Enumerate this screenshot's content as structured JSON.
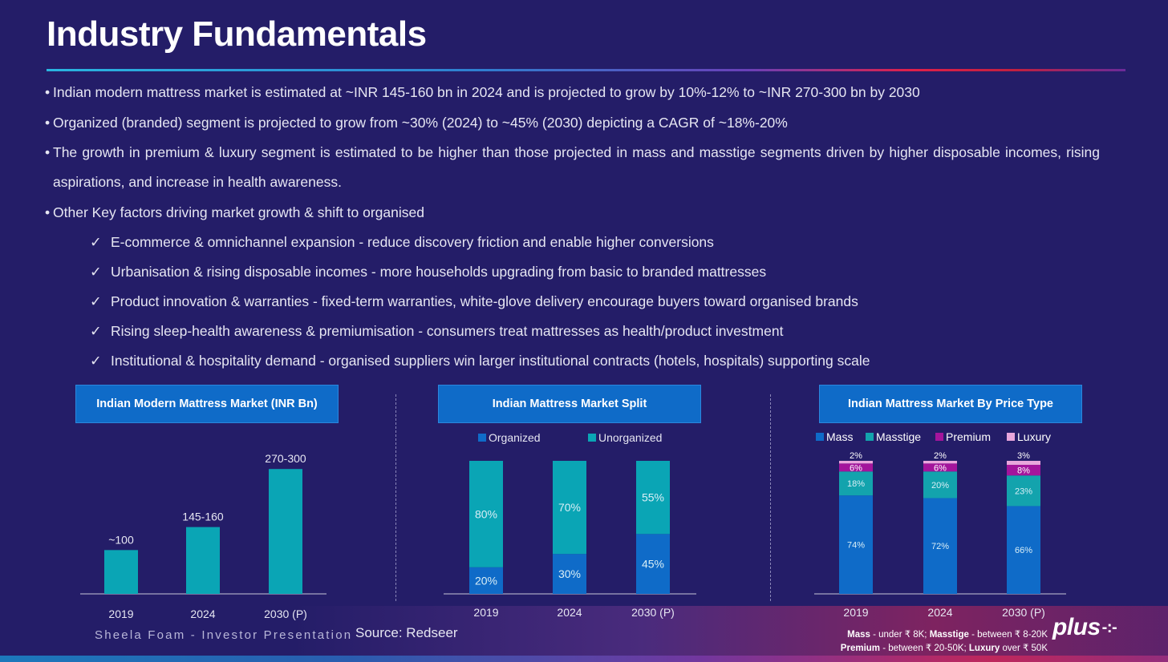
{
  "header": {
    "title": "Industry Fundamentals"
  },
  "bullets": [
    "Indian modern mattress market is estimated at ~INR 145-160 bn in 2024 and is projected to grow by 10%-12% to ~INR 270-300 bn by 2030",
    "Organized (branded) segment is projected to grow from ~30% (2024) to ~45% (2030) depicting a CAGR of ~18%-20%",
    "The growth in premium & luxury segment is estimated to be higher than those projected in mass and masstige segments driven by higher disposable incomes, rising aspirations, and increase in health awareness.",
    "Other Key factors driving market growth & shift to organised"
  ],
  "key_factors": [
    "E-commerce & omnichannel expansion - reduce discovery friction and enable higher conversions",
    "Urbanisation & rising disposable incomes - more households upgrading from basic to branded mattresses",
    "Product innovation & warranties - fixed-term warranties, white-glove delivery encourage buyers toward organised brands",
    "Rising sleep-health awareness & premiumisation - consumers treat mattresses as health/product investment",
    "Institutional & hospitality demand - organised suppliers win larger institutional contracts (hotels, hospitals) supporting scale"
  ],
  "check_glyph": "✓",
  "colors": {
    "teal": "#0aa5b5",
    "blue": "#0f6bc8",
    "masstige": "#13a3ad",
    "premium": "#a4149c",
    "luxury": "#e8a6dc",
    "axis": "#c8c8d8",
    "label": "#e6e6f2"
  },
  "chart_data": [
    {
      "type": "bar",
      "title": "Indian Modern Mattress Market (INR Bn)",
      "categories": [
        "2019",
        "2024",
        "2030 (P)"
      ],
      "values": [
        100,
        152.5,
        285
      ],
      "data_labels": [
        "~100",
        "145-160",
        "270-300"
      ],
      "ylim": [
        0,
        300
      ]
    },
    {
      "type": "bar",
      "stacked": true,
      "title": "Indian Mattress Market Split",
      "categories": [
        "2019",
        "2024",
        "2030 (P)"
      ],
      "series": [
        {
          "name": "Organized",
          "values": [
            20,
            30,
            45
          ],
          "labels": [
            "20%",
            "30%",
            "45%"
          ]
        },
        {
          "name": "Unorganized",
          "values": [
            80,
            70,
            55
          ],
          "labels": [
            "80%",
            "70%",
            "55%"
          ]
        }
      ],
      "ylim": [
        0,
        100
      ]
    },
    {
      "type": "bar",
      "stacked": true,
      "title": "Indian Mattress Market By Price Type",
      "categories": [
        "2019",
        "2024",
        "2030 (P)"
      ],
      "series": [
        {
          "name": "Mass",
          "values": [
            74,
            72,
            66
          ],
          "labels": [
            "74%",
            "72%",
            "66%"
          ]
        },
        {
          "name": "Masstige",
          "values": [
            18,
            20,
            23
          ],
          "labels": [
            "18%",
            "20%",
            "23%"
          ]
        },
        {
          "name": "Premium",
          "values": [
            6,
            6,
            8
          ],
          "labels": [
            "6%",
            "6%",
            "8%"
          ]
        },
        {
          "name": "Luxury",
          "values": [
            2,
            2,
            3
          ],
          "labels": [
            "2%",
            "2%",
            "3%"
          ]
        }
      ],
      "ylim": [
        0,
        100
      ]
    }
  ],
  "footer": {
    "presentation": "Sheela Foam - Investor Presentation",
    "source": "Source: Redseer",
    "note_line1": {
      "mass_label": "Mass",
      "mass_text": " - under ₹ 8K; ",
      "masstige_label": "Masstige",
      "masstige_text": " - between ₹ 8-20K"
    },
    "note_line2": {
      "premium_label": "Premium",
      "premium_text": " - between ₹ 20-50K; ",
      "luxury_label": "Luxury",
      "luxury_text": " over ₹ 50K"
    },
    "logo": "plus",
    "logo_mark": "-:-"
  }
}
